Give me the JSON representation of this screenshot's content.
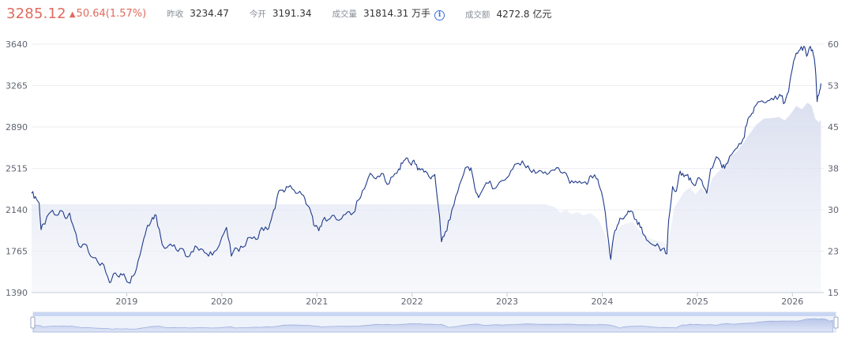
{
  "header": {
    "price": "3285.12",
    "change_arrow": "▲",
    "change": "50.64",
    "change_pct": "(1.57%)",
    "stats": [
      {
        "label": "昨收",
        "value": "3234.47"
      },
      {
        "label": "今开",
        "value": "3191.34"
      },
      {
        "label": "成交量",
        "value": "31814.31 万手"
      },
      {
        "label": "成交额",
        "value": "4272.8 亿元"
      }
    ],
    "info_icon": "info-icon"
  },
  "colors": {
    "up": "#e06a5f",
    "line": "#1f3a8a",
    "area": "#dde2f2",
    "grid": "#eceef2"
  },
  "chart_data": {
    "type": "line",
    "ylim_left": [
      1390,
      3640
    ],
    "ylim_right": [
      15,
      60
    ],
    "left_ticks": [
      "3640",
      "3265",
      "2890",
      "2515",
      "2140",
      "1765",
      "1390"
    ],
    "right_ticks": [
      "60",
      "53",
      "45",
      "38",
      "30",
      "23",
      "15"
    ],
    "x_ticks": [
      "2019",
      "2020",
      "2021",
      "2022",
      "2023",
      "2024",
      "2025",
      "2026"
    ],
    "x_range": [
      2018.0,
      2026.33
    ],
    "grid": true,
    "series": [
      {
        "axis": "left",
        "values": [
          [
            2018.0,
            2290
          ],
          [
            2018.04,
            2260
          ],
          [
            2018.08,
            2200
          ],
          [
            2018.1,
            1960
          ],
          [
            2018.14,
            2010
          ],
          [
            2018.2,
            2120
          ],
          [
            2018.26,
            2090
          ],
          [
            2018.32,
            2130
          ],
          [
            2018.36,
            2060
          ],
          [
            2018.4,
            2110
          ],
          [
            2018.45,
            1960
          ],
          [
            2018.5,
            1810
          ],
          [
            2018.56,
            1830
          ],
          [
            2018.62,
            1720
          ],
          [
            2018.7,
            1660
          ],
          [
            2018.76,
            1640
          ],
          [
            2018.82,
            1480
          ],
          [
            2018.86,
            1560
          ],
          [
            2018.92,
            1530
          ],
          [
            2018.97,
            1560
          ],
          [
            2019.02,
            1480
          ],
          [
            2019.07,
            1540
          ],
          [
            2019.12,
            1680
          ],
          [
            2019.18,
            1880
          ],
          [
            2019.22,
            2000
          ],
          [
            2019.27,
            2070
          ],
          [
            2019.31,
            2090
          ],
          [
            2019.36,
            1880
          ],
          [
            2019.4,
            1790
          ],
          [
            2019.46,
            1830
          ],
          [
            2019.52,
            1780
          ],
          [
            2019.58,
            1790
          ],
          [
            2019.62,
            1720
          ],
          [
            2019.68,
            1760
          ],
          [
            2019.74,
            1800
          ],
          [
            2019.8,
            1780
          ],
          [
            2019.86,
            1720
          ],
          [
            2019.92,
            1760
          ],
          [
            2020.0,
            1890
          ],
          [
            2020.05,
            1980
          ],
          [
            2020.1,
            1720
          ],
          [
            2020.16,
            1790
          ],
          [
            2020.22,
            1800
          ],
          [
            2020.3,
            1890
          ],
          [
            2020.36,
            1870
          ],
          [
            2020.42,
            1980
          ],
          [
            2020.48,
            1960
          ],
          [
            2020.52,
            2050
          ],
          [
            2020.56,
            2150
          ],
          [
            2020.6,
            2310
          ],
          [
            2020.64,
            2320
          ],
          [
            2020.68,
            2350
          ],
          [
            2020.74,
            2330
          ],
          [
            2020.8,
            2290
          ],
          [
            2020.86,
            2270
          ],
          [
            2020.9,
            2180
          ],
          [
            2020.94,
            2110
          ],
          [
            2020.98,
            1990
          ],
          [
            2021.02,
            1950
          ],
          [
            2021.06,
            2040
          ],
          [
            2021.12,
            2050
          ],
          [
            2021.18,
            2090
          ],
          [
            2021.26,
            2060
          ],
          [
            2021.32,
            2120
          ],
          [
            2021.38,
            2110
          ],
          [
            2021.44,
            2230
          ],
          [
            2021.5,
            2330
          ],
          [
            2021.56,
            2470
          ],
          [
            2021.62,
            2420
          ],
          [
            2021.68,
            2470
          ],
          [
            2021.74,
            2370
          ],
          [
            2021.8,
            2440
          ],
          [
            2021.86,
            2510
          ],
          [
            2021.9,
            2560
          ],
          [
            2021.94,
            2610
          ],
          [
            2021.98,
            2560
          ],
          [
            2022.02,
            2590
          ],
          [
            2022.06,
            2500
          ],
          [
            2022.1,
            2510
          ],
          [
            2022.14,
            2490
          ],
          [
            2022.2,
            2420
          ],
          [
            2022.24,
            2460
          ],
          [
            2022.28,
            2150
          ],
          [
            2022.31,
            1850
          ],
          [
            2022.35,
            1940
          ],
          [
            2022.4,
            2050
          ],
          [
            2022.46,
            2260
          ],
          [
            2022.52,
            2410
          ],
          [
            2022.58,
            2530
          ],
          [
            2022.62,
            2520
          ],
          [
            2022.66,
            2340
          ],
          [
            2022.7,
            2250
          ],
          [
            2022.76,
            2350
          ],
          [
            2022.82,
            2400
          ],
          [
            2022.86,
            2330
          ],
          [
            2022.92,
            2390
          ],
          [
            2023.0,
            2430
          ],
          [
            2023.06,
            2510
          ],
          [
            2023.12,
            2560
          ],
          [
            2023.18,
            2550
          ],
          [
            2023.24,
            2500
          ],
          [
            2023.3,
            2470
          ],
          [
            2023.36,
            2490
          ],
          [
            2023.42,
            2460
          ],
          [
            2023.48,
            2500
          ],
          [
            2023.54,
            2520
          ],
          [
            2023.6,
            2480
          ],
          [
            2023.66,
            2380
          ],
          [
            2023.72,
            2400
          ],
          [
            2023.78,
            2380
          ],
          [
            2023.84,
            2370
          ],
          [
            2023.88,
            2450
          ],
          [
            2023.94,
            2420
          ],
          [
            2023.98,
            2330
          ],
          [
            2024.02,
            2180
          ],
          [
            2024.06,
            1900
          ],
          [
            2024.09,
            1690
          ],
          [
            2024.12,
            1900
          ],
          [
            2024.16,
            2000
          ],
          [
            2024.2,
            2060
          ],
          [
            2024.26,
            2100
          ],
          [
            2024.3,
            2130
          ],
          [
            2024.36,
            2050
          ],
          [
            2024.4,
            1980
          ],
          [
            2024.44,
            1910
          ],
          [
            2024.48,
            1860
          ],
          [
            2024.54,
            1820
          ],
          [
            2024.6,
            1800
          ],
          [
            2024.64,
            1790
          ],
          [
            2024.68,
            1740
          ],
          [
            2024.7,
            2050
          ],
          [
            2024.74,
            2350
          ],
          [
            2024.78,
            2310
          ],
          [
            2024.82,
            2490
          ],
          [
            2024.86,
            2440
          ],
          [
            2024.9,
            2460
          ],
          [
            2024.94,
            2390
          ],
          [
            2024.98,
            2360
          ],
          [
            2025.02,
            2430
          ],
          [
            2025.06,
            2360
          ],
          [
            2025.1,
            2290
          ],
          [
            2025.14,
            2510
          ],
          [
            2025.2,
            2620
          ],
          [
            2025.26,
            2520
          ],
          [
            2025.3,
            2550
          ],
          [
            2025.36,
            2640
          ],
          [
            2025.42,
            2700
          ],
          [
            2025.48,
            2780
          ],
          [
            2025.52,
            2910
          ],
          [
            2025.56,
            2990
          ],
          [
            2025.6,
            3070
          ],
          [
            2025.66,
            3120
          ],
          [
            2025.72,
            3110
          ],
          [
            2025.78,
            3150
          ],
          [
            2025.84,
            3140
          ],
          [
            2025.88,
            3170
          ],
          [
            2025.92,
            3110
          ],
          [
            2025.96,
            3210
          ],
          [
            2026.0,
            3420
          ],
          [
            2026.04,
            3560
          ],
          [
            2026.08,
            3590
          ],
          [
            2026.12,
            3620
          ],
          [
            2026.15,
            3530
          ],
          [
            2026.18,
            3610
          ],
          [
            2026.21,
            3590
          ],
          [
            2026.24,
            3430
          ],
          [
            2026.26,
            3120
          ],
          [
            2026.28,
            3190
          ],
          [
            2026.3,
            3285
          ]
        ]
      },
      {
        "axis": "right",
        "values": [
          [
            2018.0,
            31
          ],
          [
            2023.4,
            31
          ],
          [
            2023.5,
            30.5
          ],
          [
            2023.56,
            29.5
          ],
          [
            2023.62,
            30
          ],
          [
            2023.68,
            29.2
          ],
          [
            2023.74,
            29.6
          ],
          [
            2023.8,
            29
          ],
          [
            2023.88,
            29.4
          ],
          [
            2023.96,
            28.2
          ],
          [
            2024.02,
            26
          ],
          [
            2024.08,
            23.2
          ],
          [
            2024.14,
            25.8
          ],
          [
            2024.2,
            27.2
          ],
          [
            2024.26,
            27.5
          ],
          [
            2024.32,
            27.8
          ],
          [
            2024.38,
            26.5
          ],
          [
            2024.44,
            25.6
          ],
          [
            2024.5,
            24.8
          ],
          [
            2024.58,
            24.4
          ],
          [
            2024.64,
            24.2
          ],
          [
            2024.68,
            23.6
          ],
          [
            2024.72,
            26.5
          ],
          [
            2024.76,
            30.5
          ],
          [
            2024.8,
            31.5
          ],
          [
            2024.86,
            33.2
          ],
          [
            2024.92,
            34
          ],
          [
            2024.98,
            32.8
          ],
          [
            2025.04,
            34
          ],
          [
            2025.1,
            33
          ],
          [
            2025.16,
            35.8
          ],
          [
            2025.24,
            37.2
          ],
          [
            2025.3,
            38.6
          ],
          [
            2025.36,
            39.8
          ],
          [
            2025.42,
            40.6
          ],
          [
            2025.5,
            42.5
          ],
          [
            2025.56,
            44
          ],
          [
            2025.62,
            45.4
          ],
          [
            2025.7,
            46.5
          ],
          [
            2025.78,
            46.6
          ],
          [
            2025.86,
            46.8
          ],
          [
            2025.92,
            46.2
          ],
          [
            2025.98,
            47.3
          ],
          [
            2026.04,
            48.8
          ],
          [
            2026.1,
            48.2
          ],
          [
            2026.16,
            49.4
          ],
          [
            2026.2,
            48.9
          ],
          [
            2026.24,
            46.5
          ],
          [
            2026.28,
            45.8
          ],
          [
            2026.3,
            46.4
          ]
        ]
      }
    ]
  }
}
